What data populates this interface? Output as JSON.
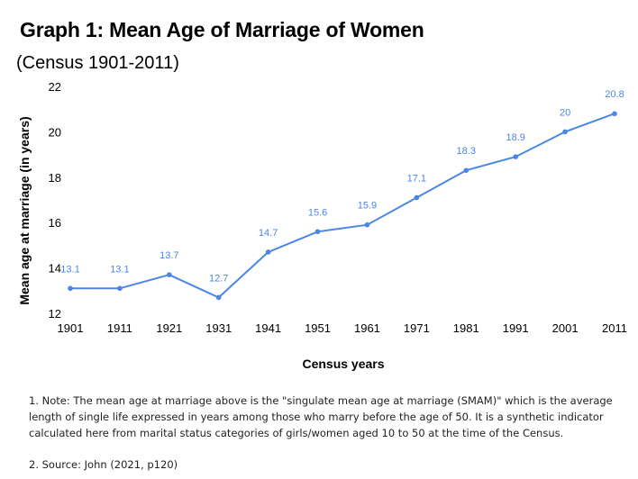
{
  "header": {
    "title": "Graph 1: Mean Age of Marriage of Women",
    "subtitle": "(Census 1901-2011)"
  },
  "notes": {
    "note": "1. Note: The mean age at marriage above is the \"singulate mean age at marriage (SMAM)\" which is the average length of single life expressed in years among those who marry before the age of 50. It is a synthetic indicator calculated here from marital status categories of girls/women aged 10 to 50 at the time of the Census.",
    "source": "2. Source: John (2021, p120)"
  },
  "chart_data": {
    "type": "line",
    "title": "Graph 1: Mean Age of Marriage of Women",
    "subtitle": "(Census 1901-2011)",
    "xlabel": "Census years",
    "ylabel": "Mean age at marriage (in years)",
    "categories": [
      "1901",
      "1911",
      "1921",
      "1931",
      "1941",
      "1951",
      "1961",
      "1971",
      "1981",
      "1991",
      "2001",
      "2011"
    ],
    "values": [
      13.1,
      13.1,
      13.7,
      12.7,
      14.7,
      15.6,
      15.9,
      17.1,
      18.3,
      18.9,
      20,
      20.8
    ],
    "data_labels": [
      "13.1",
      "13.1",
      "13.7",
      "12.7",
      "14.7",
      "15.6",
      "15.9",
      "17.1",
      "18.3",
      "18.9",
      "20",
      "20.8"
    ],
    "ylim": [
      12,
      22
    ],
    "yticks": [
      "12",
      "14",
      "16",
      "18",
      "20",
      "22"
    ],
    "grid": false,
    "line_color": "#4a86e8"
  }
}
